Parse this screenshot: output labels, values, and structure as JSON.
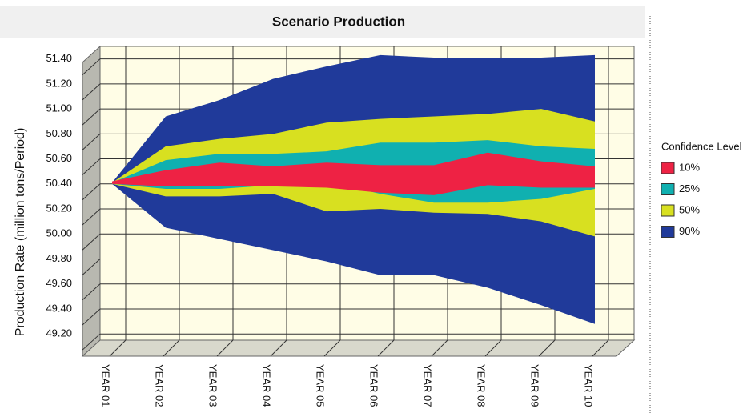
{
  "chart_data": {
    "type": "band",
    "title": "Scenario Production",
    "y_label": "Production Rate (million tons/Period)",
    "legend_title": "Confidence Level",
    "legend": "right",
    "grid": true,
    "categories": [
      "YEAR 01",
      "YEAR 02",
      "YEAR 03",
      "YEAR 04",
      "YEAR 05",
      "YEAR 06",
      "YEAR 07",
      "YEAR 08",
      "YEAR 09",
      "YEAR 10"
    ],
    "ylim": [
      49.15,
      51.5
    ],
    "yticks": [
      {
        "value": 49.2,
        "label": "49.20"
      },
      {
        "value": 49.4,
        "label": "49.40"
      },
      {
        "value": 49.6,
        "label": "49.60"
      },
      {
        "value": 49.8,
        "label": "49.80"
      },
      {
        "value": 50.0,
        "label": "50.00"
      },
      {
        "value": 50.2,
        "label": "50.20"
      },
      {
        "value": 50.4,
        "label": "50.40"
      },
      {
        "value": 50.6,
        "label": "50.60"
      },
      {
        "value": 50.8,
        "label": "50.80"
      },
      {
        "value": 51.0,
        "label": "51.00"
      },
      {
        "value": 51.2,
        "label": "51.20"
      },
      {
        "value": 51.4,
        "label": "51.40"
      }
    ],
    "series": [
      {
        "name": "10%",
        "color": "#ee2244",
        "upper": [
          50.42,
          50.51,
          50.57,
          50.54,
          50.57,
          50.55,
          50.55,
          50.65,
          50.58,
          50.54
        ],
        "lower": [
          50.4,
          50.38,
          50.38,
          50.38,
          50.37,
          50.33,
          50.31,
          50.39,
          50.37,
          50.37
        ]
      },
      {
        "name": "25%",
        "color": "#10b0b0",
        "upper": [
          50.41,
          50.59,
          50.64,
          50.64,
          50.66,
          50.73,
          50.73,
          50.75,
          50.7,
          50.68
        ],
        "lower": [
          50.4,
          50.36,
          50.36,
          50.39,
          50.42,
          50.32,
          50.25,
          50.25,
          50.28,
          50.36
        ]
      },
      {
        "name": "50%",
        "color": "#d8e020",
        "upper": [
          50.41,
          50.7,
          50.76,
          50.8,
          50.89,
          50.92,
          50.94,
          50.96,
          51.0,
          50.9
        ],
        "lower": [
          50.4,
          50.3,
          50.3,
          50.32,
          50.18,
          50.2,
          50.17,
          50.16,
          50.1,
          49.98
        ]
      },
      {
        "name": "90%",
        "color": "#203a9a",
        "upper": [
          50.41,
          50.94,
          51.07,
          51.24,
          51.34,
          51.43,
          51.41,
          51.41,
          51.41,
          51.43
        ],
        "lower": [
          50.4,
          50.05,
          49.96,
          49.87,
          49.78,
          49.67,
          49.67,
          49.57,
          49.43,
          49.28
        ]
      }
    ]
  }
}
